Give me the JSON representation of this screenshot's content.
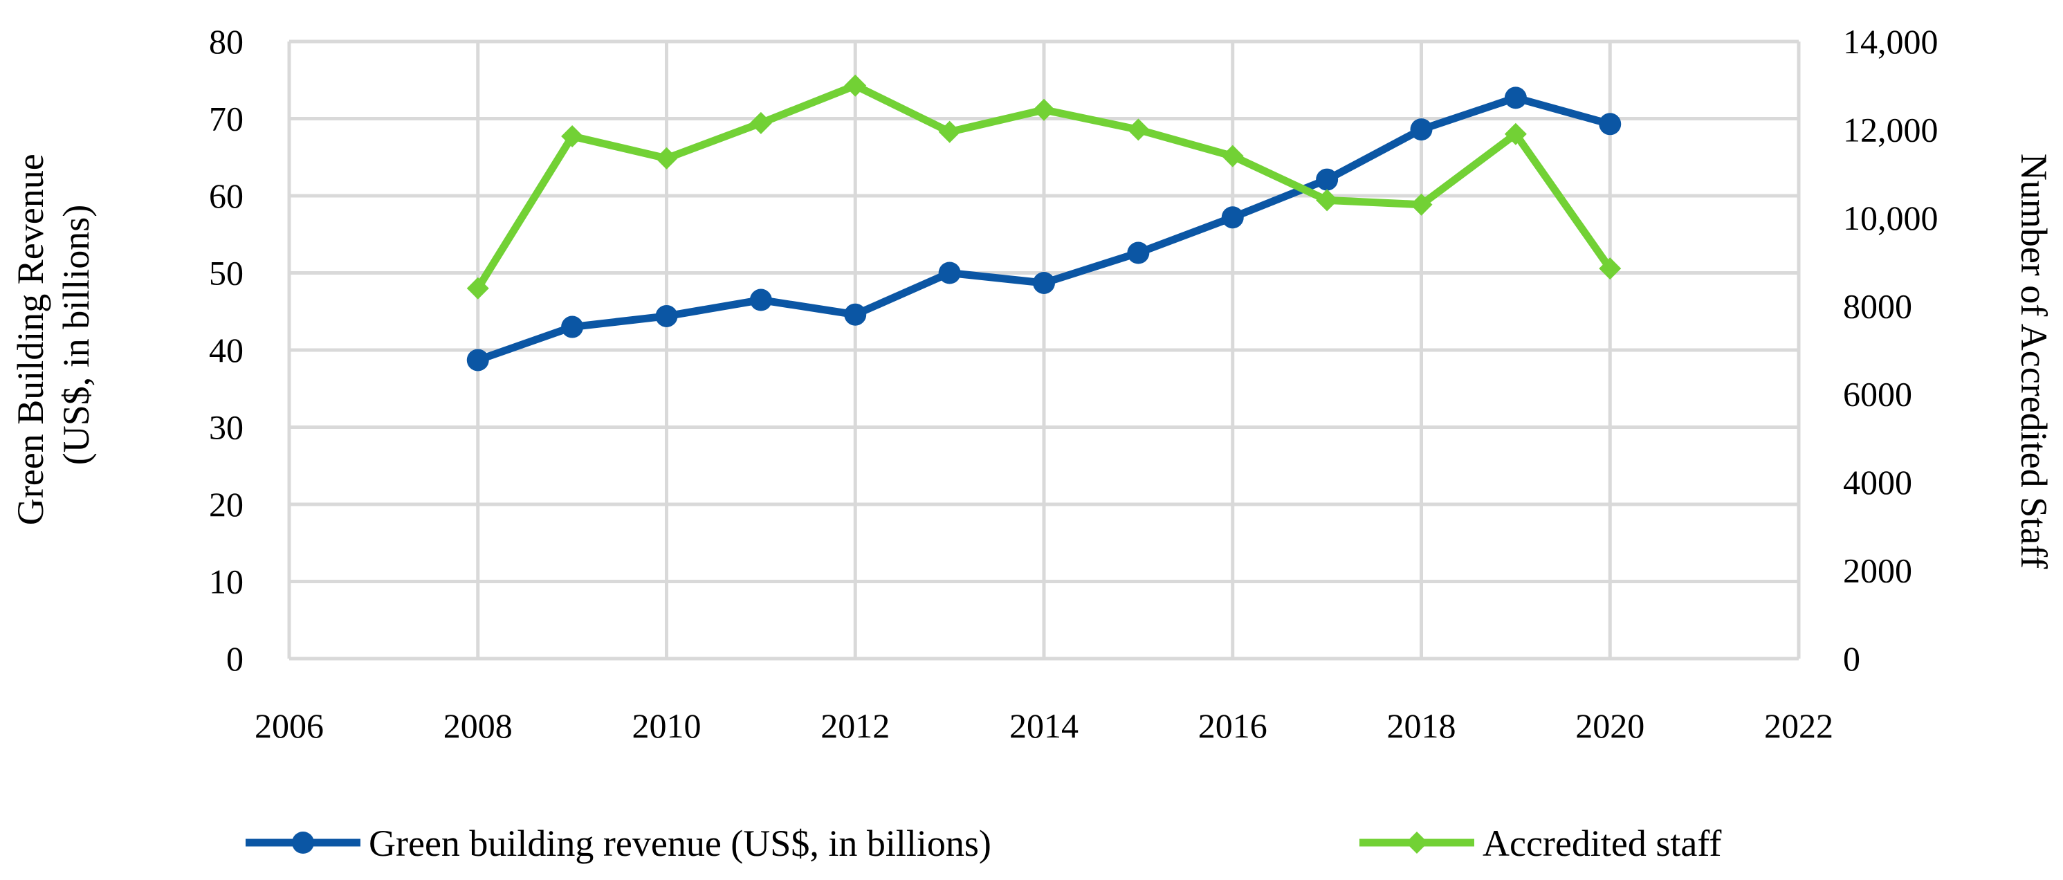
{
  "chart_data": {
    "type": "line",
    "title": "",
    "xlabel": "",
    "ylabel": "Green Building Revenue (US$, in billions)",
    "ylabel_lines": [
      "Green Building Revenue",
      "(US$, in billions)"
    ],
    "y2label": "Number of Accredited Staff",
    "xlim": [
      2006,
      2022
    ],
    "ylim": [
      0,
      80
    ],
    "y2lim": [
      0,
      14000
    ],
    "x_ticks": [
      "2006",
      "2008",
      "2010",
      "2012",
      "2014",
      "2016",
      "2018",
      "2020",
      "2022"
    ],
    "y_ticks": [
      "0",
      "10",
      "20",
      "30",
      "40",
      "50",
      "60",
      "70",
      "80"
    ],
    "y2_ticks": [
      "0",
      "2000",
      "4000",
      "6000",
      "8000",
      "10,000",
      "12,000",
      "14,000"
    ],
    "grid": true,
    "legend_position": "bottom",
    "x": [
      2008,
      2009,
      2010,
      2011,
      2012,
      2013,
      2014,
      2015,
      2016,
      2017,
      2018,
      2019,
      2020
    ],
    "series": [
      {
        "name": "Green building revenue (US$, in billions)",
        "axis": "left",
        "color": "#0b56a4",
        "marker": "circle",
        "values": [
          38.7,
          43.0,
          44.4,
          46.5,
          44.6,
          50.0,
          48.7,
          52.6,
          57.2,
          62.1,
          68.6,
          72.7,
          69.3
        ]
      },
      {
        "name": "Accredited staff",
        "axis": "right",
        "color": "#72d135",
        "marker": "diamond",
        "values": [
          8400,
          11850,
          11350,
          12150,
          13000,
          11950,
          12450,
          12000,
          11400,
          10400,
          10300,
          11900,
          8850
        ]
      }
    ]
  }
}
